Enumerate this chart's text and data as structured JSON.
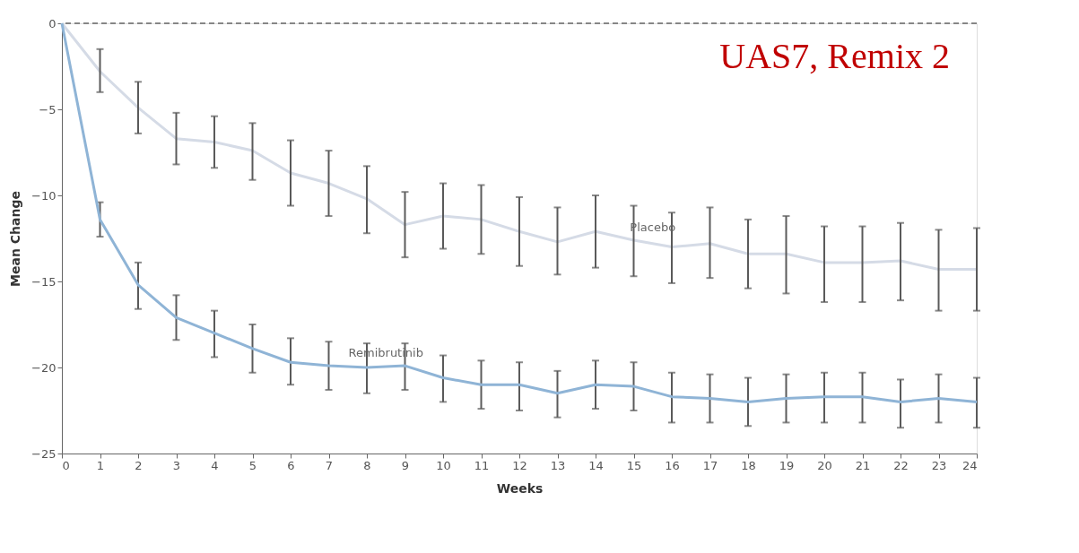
{
  "chart_data": {
    "type": "line",
    "title": "UAS7, Remix 2",
    "xlabel": "Weeks",
    "ylabel": "Mean Change",
    "x": [
      0,
      1,
      2,
      3,
      4,
      5,
      6,
      7,
      8,
      9,
      10,
      11,
      12,
      13,
      14,
      15,
      16,
      17,
      18,
      19,
      20,
      21,
      22,
      23,
      24
    ],
    "xlim": [
      0,
      24
    ],
    "xticks": [
      0,
      1,
      2,
      3,
      4,
      5,
      6,
      7,
      8,
      9,
      10,
      11,
      12,
      13,
      14,
      15,
      16,
      17,
      18,
      19,
      20,
      21,
      22,
      23,
      24
    ],
    "ylim": [
      -25,
      0
    ],
    "yticks": [
      -25,
      -20,
      -15,
      -10,
      -5,
      0
    ],
    "grid": false,
    "line_style": "solid",
    "ref_lines": [
      {
        "axis": "y",
        "value": 0,
        "color": "#666666",
        "line_style": "dashed"
      }
    ],
    "series": [
      {
        "name": "Placebo",
        "color": "#d5dbe6",
        "values": [
          0,
          -2.8,
          -4.9,
          -6.7,
          -6.9,
          -7.4,
          -8.7,
          -9.3,
          -10.2,
          -11.7,
          -11.2,
          -11.4,
          -12.1,
          -12.7,
          -12.1,
          -12.6,
          -13.0,
          -12.8,
          -13.4,
          -13.4,
          -13.9,
          -13.9,
          -13.8,
          -14.3,
          -14.3
        ],
        "errors": [
          null,
          [
            -4.0,
            -1.5
          ],
          [
            -6.4,
            -3.4
          ],
          [
            -8.2,
            -5.2
          ],
          [
            -8.4,
            -5.4
          ],
          [
            -9.1,
            -5.8
          ],
          [
            -10.6,
            -6.8
          ],
          [
            -11.2,
            -7.4
          ],
          [
            -12.2,
            -8.3
          ],
          [
            -13.6,
            -9.8
          ],
          [
            -13.1,
            -9.3
          ],
          [
            -13.4,
            -9.4
          ],
          [
            -14.1,
            -10.1
          ],
          [
            -14.6,
            -10.7
          ],
          [
            -14.2,
            -10.0
          ],
          [
            -14.7,
            -10.6
          ],
          [
            -15.1,
            -11.0
          ],
          [
            -14.8,
            -10.7
          ],
          [
            -15.4,
            -11.4
          ],
          [
            -15.7,
            -11.2
          ],
          [
            -16.2,
            -11.8
          ],
          [
            -16.2,
            -11.8
          ],
          [
            -16.1,
            -11.6
          ],
          [
            -16.7,
            -12.0
          ],
          [
            -16.7,
            -11.9
          ]
        ]
      },
      {
        "name": "Remibrutinib",
        "color": "#8fb4d6",
        "values": [
          0,
          -11.4,
          -15.2,
          -17.1,
          -18.0,
          -18.9,
          -19.7,
          -19.9,
          -20.0,
          -19.9,
          -20.6,
          -21.0,
          -21.0,
          -21.5,
          -21.0,
          -21.1,
          -21.7,
          -21.8,
          -22.0,
          -21.8,
          -21.7,
          -21.7,
          -22.0,
          -21.8,
          -22.0
        ],
        "errors": [
          null,
          [
            -12.4,
            -10.4
          ],
          [
            -16.6,
            -13.9
          ],
          [
            -18.4,
            -15.8
          ],
          [
            -19.4,
            -16.7
          ],
          [
            -20.3,
            -17.5
          ],
          [
            -21.0,
            -18.3
          ],
          [
            -21.3,
            -18.5
          ],
          [
            -21.5,
            -18.6
          ],
          [
            -21.3,
            -18.6
          ],
          [
            -22.0,
            -19.3
          ],
          [
            -22.4,
            -19.6
          ],
          [
            -22.5,
            -19.7
          ],
          [
            -22.9,
            -20.2
          ],
          [
            -22.4,
            -19.6
          ],
          [
            -22.5,
            -19.7
          ],
          [
            -23.2,
            -20.3
          ],
          [
            -23.2,
            -20.4
          ],
          [
            -23.4,
            -20.6
          ],
          [
            -23.2,
            -20.4
          ],
          [
            -23.2,
            -20.3
          ],
          [
            -23.2,
            -20.3
          ],
          [
            -23.5,
            -20.7
          ],
          [
            -23.2,
            -20.4
          ],
          [
            -23.5,
            -20.6
          ]
        ]
      }
    ]
  }
}
